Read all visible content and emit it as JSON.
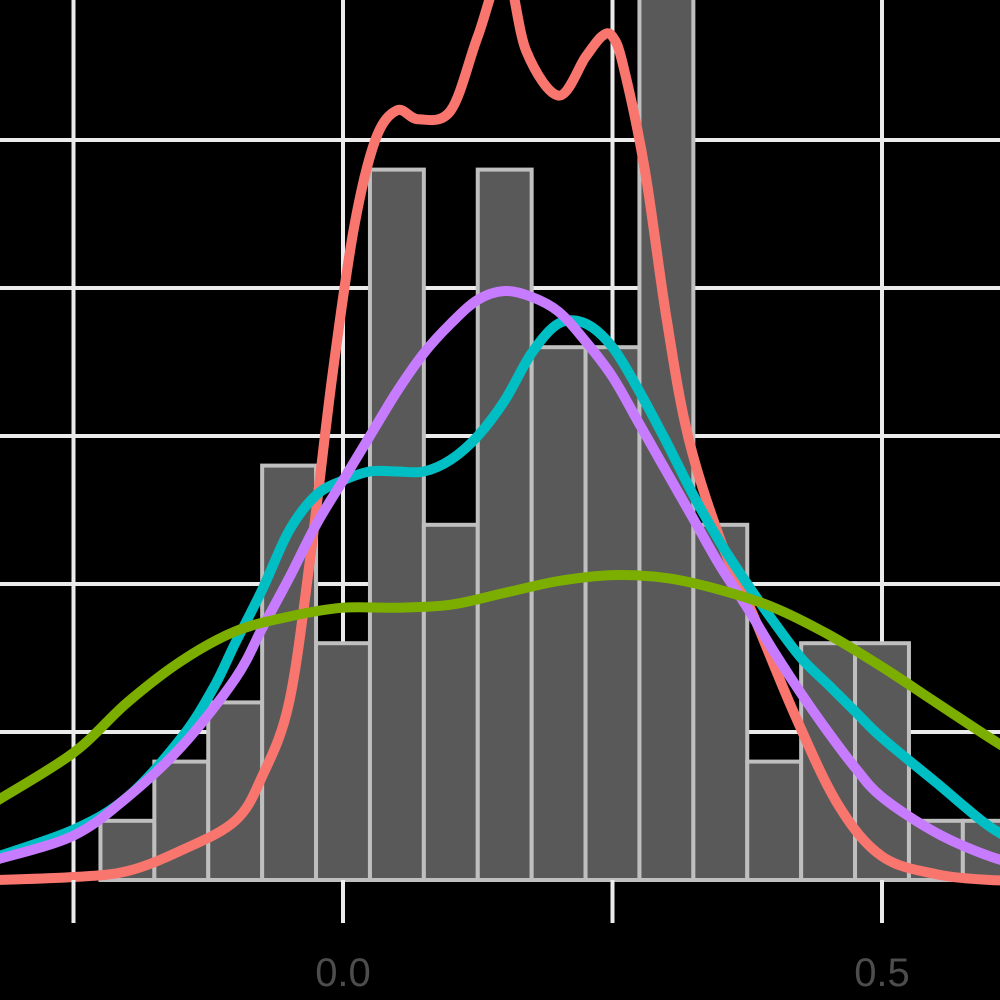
{
  "chart_data": {
    "type": "bar",
    "title": "",
    "xlabel": "",
    "ylabel": "",
    "xlim": [
      -0.25,
      0.6
    ],
    "ylim": [
      0,
      3.0
    ],
    "grid": true,
    "x_ticks": [
      -0.25,
      0.0,
      0.25,
      0.5
    ],
    "x_tick_labels": [
      "",
      "0.0",
      "",
      "0.5"
    ],
    "y_gridlines": [
      0.5,
      1.0,
      1.5,
      2.0,
      2.5
    ],
    "colors": {
      "background": "#000000",
      "grid": "#ebebeb",
      "bar_fill": "#595959",
      "bar_outline": "#bfbfbf",
      "tick_text": "#4d4d4d"
    },
    "histogram": {
      "bin_width": 0.05,
      "bins": [
        {
          "x0": -0.225,
          "x1": -0.175,
          "height": 0.2
        },
        {
          "x0": -0.175,
          "x1": -0.125,
          "height": 0.4
        },
        {
          "x0": -0.125,
          "x1": -0.075,
          "height": 0.6
        },
        {
          "x0": -0.075,
          "x1": -0.025,
          "height": 1.4
        },
        {
          "x0": -0.025,
          "x1": 0.025,
          "height": 0.8
        },
        {
          "x0": 0.025,
          "x1": 0.075,
          "height": 2.4
        },
        {
          "x0": 0.075,
          "x1": 0.125,
          "height": 1.2
        },
        {
          "x0": 0.125,
          "x1": 0.175,
          "height": 2.4
        },
        {
          "x0": 0.175,
          "x1": 0.225,
          "height": 1.8
        },
        {
          "x0": 0.225,
          "x1": 0.275,
          "height": 1.8
        },
        {
          "x0": 0.275,
          "x1": 0.325,
          "height": 3.4
        },
        {
          "x0": 0.325,
          "x1": 0.375,
          "height": 1.2
        },
        {
          "x0": 0.375,
          "x1": 0.425,
          "height": 0.4
        },
        {
          "x0": 0.425,
          "x1": 0.475,
          "height": 0.8
        },
        {
          "x0": 0.475,
          "x1": 0.525,
          "height": 0.8
        },
        {
          "x0": 0.525,
          "x1": 0.575,
          "height": 0.2
        },
        {
          "x0": 0.575,
          "x1": 0.625,
          "height": 0.2
        }
      ]
    },
    "series": [
      {
        "type": "line",
        "color": "#f8766d",
        "x": [
          -0.32,
          -0.25,
          -0.2,
          -0.15,
          -0.1,
          -0.075,
          -0.05,
          -0.03,
          -0.01,
          0.01,
          0.03,
          0.05,
          0.07,
          0.1,
          0.125,
          0.15,
          0.17,
          0.2,
          0.225,
          0.24,
          0.25,
          0.26,
          0.28,
          0.3,
          0.32,
          0.35,
          0.38,
          0.42,
          0.46,
          0.5,
          0.55,
          0.6,
          0.64
        ],
        "y": [
          0.0,
          0.01,
          0.03,
          0.1,
          0.2,
          0.35,
          0.6,
          1.1,
          1.7,
          2.2,
          2.5,
          2.6,
          2.57,
          2.6,
          2.85,
          3.08,
          2.8,
          2.65,
          2.78,
          2.85,
          2.85,
          2.75,
          2.4,
          1.9,
          1.5,
          1.15,
          0.9,
          0.55,
          0.25,
          0.08,
          0.02,
          0.0,
          0.0
        ]
      },
      {
        "type": "line",
        "color": "#00bfc4",
        "x": [
          -0.32,
          -0.25,
          -0.2,
          -0.15,
          -0.12,
          -0.1,
          -0.075,
          -0.05,
          -0.025,
          0.0,
          0.025,
          0.05,
          0.075,
          0.1,
          0.125,
          0.15,
          0.175,
          0.2,
          0.225,
          0.25,
          0.275,
          0.3,
          0.325,
          0.35,
          0.375,
          0.4,
          0.425,
          0.45,
          0.475,
          0.5,
          0.55,
          0.6,
          0.64
        ],
        "y": [
          0.08,
          0.17,
          0.28,
          0.48,
          0.65,
          0.8,
          0.98,
          1.18,
          1.3,
          1.35,
          1.38,
          1.38,
          1.38,
          1.42,
          1.5,
          1.62,
          1.78,
          1.88,
          1.88,
          1.8,
          1.65,
          1.48,
          1.3,
          1.14,
          1.0,
          0.87,
          0.75,
          0.66,
          0.57,
          0.48,
          0.33,
          0.18,
          0.1
        ]
      },
      {
        "type": "line",
        "color": "#c77cff",
        "x": [
          -0.32,
          -0.25,
          -0.2,
          -0.15,
          -0.1,
          -0.075,
          -0.05,
          -0.025,
          0.0,
          0.025,
          0.05,
          0.075,
          0.1,
          0.125,
          0.15,
          0.175,
          0.2,
          0.225,
          0.25,
          0.275,
          0.3,
          0.325,
          0.35,
          0.375,
          0.4,
          0.425,
          0.45,
          0.475,
          0.5,
          0.55,
          0.6,
          0.64
        ],
        "y": [
          0.07,
          0.15,
          0.28,
          0.45,
          0.68,
          0.85,
          1.02,
          1.2,
          1.35,
          1.5,
          1.65,
          1.78,
          1.88,
          1.96,
          1.99,
          1.97,
          1.92,
          1.82,
          1.7,
          1.54,
          1.38,
          1.22,
          1.06,
          0.92,
          0.77,
          0.63,
          0.5,
          0.38,
          0.28,
          0.16,
          0.08,
          0.04
        ]
      },
      {
        "type": "line",
        "color": "#7cae00",
        "x": [
          -0.32,
          -0.25,
          -0.2,
          -0.15,
          -0.1,
          -0.05,
          0.0,
          0.05,
          0.1,
          0.15,
          0.2,
          0.25,
          0.3,
          0.35,
          0.4,
          0.45,
          0.5,
          0.55,
          0.6,
          0.64
        ],
        "y": [
          0.27,
          0.43,
          0.6,
          0.74,
          0.84,
          0.89,
          0.92,
          0.92,
          0.93,
          0.97,
          1.01,
          1.03,
          1.02,
          0.98,
          0.92,
          0.83,
          0.72,
          0.6,
          0.48,
          0.39
        ]
      }
    ]
  }
}
